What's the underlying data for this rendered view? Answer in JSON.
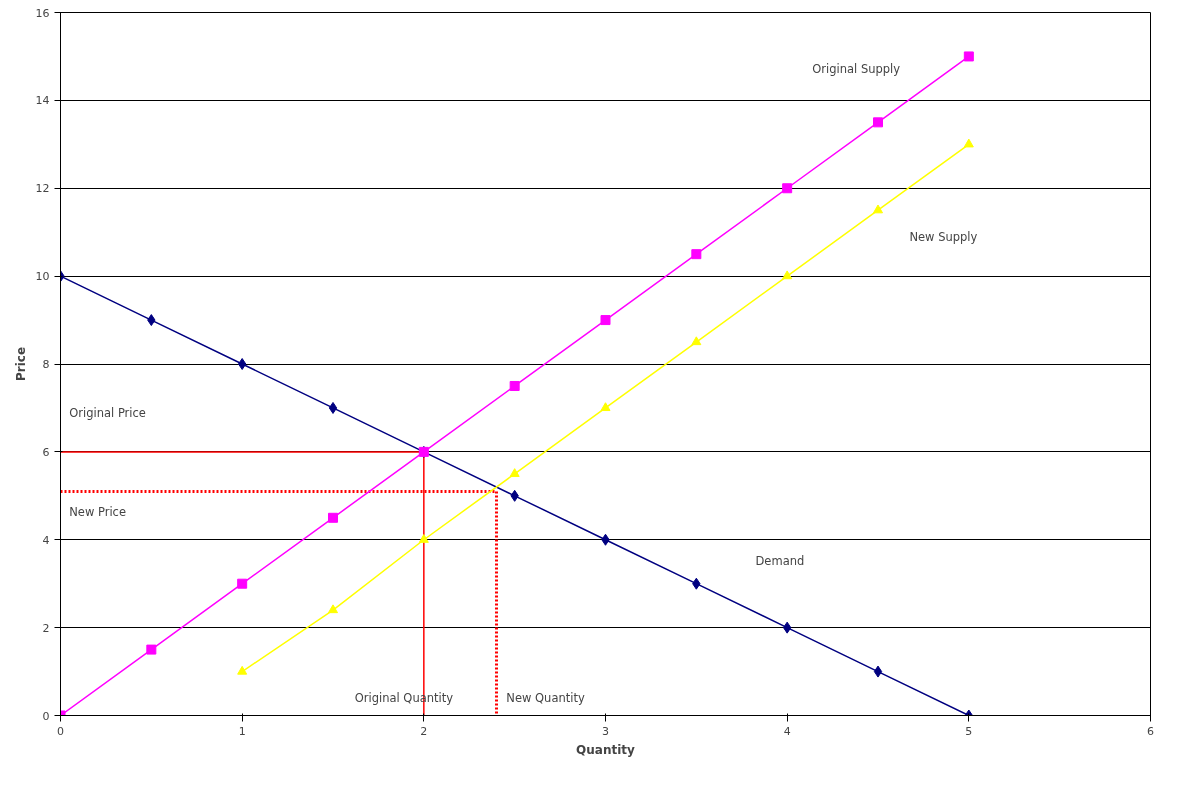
{
  "chart_data": {
    "type": "line",
    "xlabel": "Quantity",
    "ylabel": "Price",
    "xlim": [
      0,
      6
    ],
    "ylim": [
      0,
      16
    ],
    "xticks": [
      0,
      1,
      2,
      3,
      4,
      5,
      6
    ],
    "yticks": [
      0,
      2,
      4,
      6,
      8,
      10,
      12,
      14,
      16
    ],
    "grid": "y",
    "series": [
      {
        "color": "#ff0000",
        "x": [
          0,
          2,
          2
        ],
        "values": [
          6,
          6,
          0
        ],
        "marker": "none",
        "line_style": "solid"
      },
      {
        "color": "#ff0000",
        "x": [
          0,
          2.4,
          2.4
        ],
        "values": [
          5.1,
          5.1,
          0
        ],
        "marker": "none",
        "line_style": "dotted"
      },
      {
        "color": "#000080",
        "x": [
          0,
          0.5,
          1,
          1.5,
          2,
          2.5,
          3,
          3.5,
          4,
          4.5,
          5
        ],
        "values": [
          10,
          9,
          8,
          7,
          6,
          5,
          4,
          3,
          2,
          1,
          0
        ],
        "marker": "diamond",
        "line_style": "solid"
      },
      {
        "color": "#ff00ff",
        "x": [
          0,
          0.5,
          1,
          1.5,
          2,
          2.5,
          3,
          3.5,
          4,
          4.5,
          5
        ],
        "values": [
          0,
          1.5,
          3,
          4.5,
          6,
          7.5,
          9,
          10.5,
          12,
          13.5,
          15
        ],
        "marker": "square",
        "line_style": "solid"
      },
      {
        "color": "#ffff00",
        "x": [
          1,
          1.5,
          2,
          2.5,
          3,
          3.5,
          4,
          4.5,
          5
        ],
        "values": [
          1,
          2.4,
          4,
          5.5,
          7,
          8.5,
          10,
          11.5,
          13
        ],
        "marker": "triangle",
        "line_style": "solid"
      }
    ],
    "annotations": [
      "Original Supply",
      "New Supply",
      "Demand",
      "Original Price",
      "New Price",
      "Original Quantity",
      "New Quantity"
    ]
  }
}
